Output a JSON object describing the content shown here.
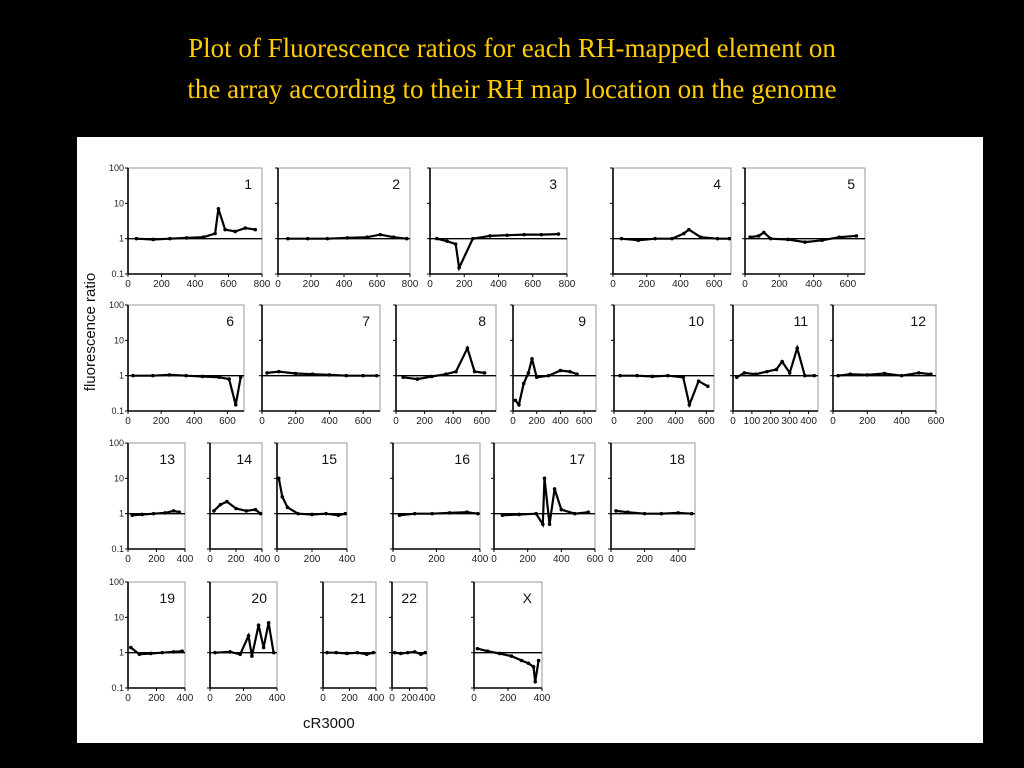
{
  "slide": {
    "title_line1": "Plot of Fluorescence ratios for each RH-mapped element on",
    "title_line2": "the array according to their RH map location on the genome"
  },
  "chart_data": {
    "type": "scatter",
    "y_scale": "log",
    "ylabel": "fluorescence ratio",
    "xlabel": "cR3000",
    "y_ticks": [
      "100",
      "10",
      "1",
      "0.1"
    ],
    "ylim": [
      0.1,
      100
    ],
    "baseline": 1,
    "panels": [
      {
        "label": "1",
        "x_ticks": [
          0,
          200,
          400,
          600,
          800
        ],
        "xlim": [
          0,
          800
        ],
        "points": [
          [
            50,
            1
          ],
          [
            150,
            0.95
          ],
          [
            250,
            1
          ],
          [
            350,
            1.05
          ],
          [
            450,
            1.1
          ],
          [
            520,
            1.4
          ],
          [
            540,
            7
          ],
          [
            580,
            1.8
          ],
          [
            640,
            1.6
          ],
          [
            700,
            2
          ],
          [
            760,
            1.8
          ]
        ]
      },
      {
        "label": "2",
        "x_ticks": [
          0,
          200,
          400,
          600,
          800
        ],
        "xlim": [
          0,
          800
        ],
        "points": [
          [
            60,
            1
          ],
          [
            180,
            1
          ],
          [
            300,
            1
          ],
          [
            420,
            1.05
          ],
          [
            540,
            1.1
          ],
          [
            620,
            1.3
          ],
          [
            700,
            1.1
          ],
          [
            780,
            1
          ]
        ]
      },
      {
        "label": "3",
        "x_ticks": [
          0,
          200,
          400,
          600,
          800
        ],
        "xlim": [
          0,
          800
        ],
        "points": [
          [
            40,
            1
          ],
          [
            100,
            0.85
          ],
          [
            150,
            0.7
          ],
          [
            170,
            0.15
          ],
          [
            250,
            1
          ],
          [
            350,
            1.2
          ],
          [
            450,
            1.25
          ],
          [
            550,
            1.3
          ],
          [
            650,
            1.3
          ],
          [
            750,
            1.35
          ]
        ]
      },
      {
        "label": "4",
        "x_ticks": [
          0,
          200,
          400,
          600
        ],
        "xlim": [
          0,
          700
        ],
        "points": [
          [
            50,
            1
          ],
          [
            150,
            0.9
          ],
          [
            250,
            1
          ],
          [
            350,
            1
          ],
          [
            420,
            1.4
          ],
          [
            450,
            1.8
          ],
          [
            520,
            1.1
          ],
          [
            620,
            1
          ],
          [
            690,
            1
          ]
        ]
      },
      {
        "label": "5",
        "x_ticks": [
          0,
          200,
          400,
          600
        ],
        "xlim": [
          0,
          700
        ],
        "points": [
          [
            30,
            1.1
          ],
          [
            80,
            1.2
          ],
          [
            110,
            1.5
          ],
          [
            150,
            1
          ],
          [
            250,
            0.95
          ],
          [
            350,
            0.8
          ],
          [
            450,
            0.9
          ],
          [
            550,
            1.1
          ],
          [
            650,
            1.2
          ]
        ]
      },
      {
        "label": "6",
        "x_ticks": [
          0,
          200,
          400,
          600
        ],
        "xlim": [
          0,
          700
        ],
        "points": [
          [
            30,
            1
          ],
          [
            150,
            1
          ],
          [
            250,
            1.05
          ],
          [
            350,
            1
          ],
          [
            450,
            0.95
          ],
          [
            550,
            0.9
          ],
          [
            610,
            0.8
          ],
          [
            650,
            0.15
          ],
          [
            680,
            0.9
          ]
        ]
      },
      {
        "label": "7",
        "x_ticks": [
          0,
          200,
          400,
          600
        ],
        "xlim": [
          0,
          700
        ],
        "points": [
          [
            30,
            1.2
          ],
          [
            100,
            1.3
          ],
          [
            200,
            1.15
          ],
          [
            300,
            1.1
          ],
          [
            400,
            1.05
          ],
          [
            500,
            1
          ],
          [
            600,
            1
          ],
          [
            680,
            1
          ]
        ]
      },
      {
        "label": "8",
        "x_ticks": [
          0,
          200,
          400,
          600
        ],
        "xlim": [
          0,
          700
        ],
        "points": [
          [
            50,
            0.9
          ],
          [
            150,
            0.8
          ],
          [
            250,
            0.95
          ],
          [
            350,
            1.1
          ],
          [
            420,
            1.3
          ],
          [
            500,
            6
          ],
          [
            550,
            1.3
          ],
          [
            620,
            1.2
          ]
        ]
      },
      {
        "label": "9",
        "x_ticks": [
          0,
          200,
          400,
          600
        ],
        "xlim": [
          0,
          700
        ],
        "points": [
          [
            20,
            0.2
          ],
          [
            50,
            0.15
          ],
          [
            90,
            0.6
          ],
          [
            130,
            1.2
          ],
          [
            160,
            3
          ],
          [
            200,
            0.9
          ],
          [
            300,
            1
          ],
          [
            400,
            1.4
          ],
          [
            480,
            1.3
          ],
          [
            540,
            1.1
          ]
        ]
      },
      {
        "label": "10",
        "x_ticks": [
          0,
          200,
          400,
          600
        ],
        "xlim": [
          0,
          650
        ],
        "points": [
          [
            40,
            1
          ],
          [
            150,
            1
          ],
          [
            250,
            0.95
          ],
          [
            350,
            1
          ],
          [
            450,
            0.9
          ],
          [
            490,
            0.15
          ],
          [
            550,
            0.7
          ],
          [
            610,
            0.5
          ]
        ]
      },
      {
        "label": "11",
        "x_ticks": [
          0,
          100,
          200,
          300,
          400
        ],
        "xlim": [
          0,
          450
        ],
        "points": [
          [
            20,
            0.9
          ],
          [
            60,
            1.2
          ],
          [
            120,
            1.1
          ],
          [
            180,
            1.3
          ],
          [
            230,
            1.5
          ],
          [
            260,
            2.5
          ],
          [
            300,
            1.2
          ],
          [
            340,
            6
          ],
          [
            380,
            1
          ],
          [
            430,
            1
          ]
        ]
      },
      {
        "label": "12",
        "x_ticks": [
          0,
          200,
          400,
          600
        ],
        "xlim": [
          0,
          600
        ],
        "points": [
          [
            30,
            1
          ],
          [
            100,
            1.1
          ],
          [
            200,
            1.05
          ],
          [
            300,
            1.15
          ],
          [
            400,
            1
          ],
          [
            500,
            1.2
          ],
          [
            570,
            1.1
          ]
        ]
      },
      {
        "label": "13",
        "x_ticks": [
          0,
          200,
          400
        ],
        "xlim": [
          0,
          400
        ],
        "points": [
          [
            30,
            0.9
          ],
          [
            100,
            0.95
          ],
          [
            180,
            1
          ],
          [
            260,
            1.05
          ],
          [
            320,
            1.2
          ],
          [
            360,
            1.1
          ]
        ]
      },
      {
        "label": "14",
        "x_ticks": [
          0,
          200,
          400
        ],
        "xlim": [
          0,
          400
        ],
        "points": [
          [
            30,
            1.2
          ],
          [
            80,
            1.8
          ],
          [
            130,
            2.2
          ],
          [
            200,
            1.4
          ],
          [
            280,
            1.2
          ],
          [
            350,
            1.3
          ],
          [
            390,
            1
          ]
        ]
      },
      {
        "label": "15",
        "x_ticks": [
          0,
          200,
          400
        ],
        "xlim": [
          0,
          400
        ],
        "points": [
          [
            10,
            10
          ],
          [
            30,
            3
          ],
          [
            60,
            1.5
          ],
          [
            120,
            1
          ],
          [
            200,
            0.95
          ],
          [
            280,
            1
          ],
          [
            350,
            0.9
          ],
          [
            390,
            1
          ]
        ]
      },
      {
        "label": "16",
        "x_ticks": [
          0,
          200,
          400
        ],
        "xlim": [
          0,
          400
        ],
        "points": [
          [
            30,
            0.9
          ],
          [
            100,
            1
          ],
          [
            180,
            1
          ],
          [
            260,
            1.05
          ],
          [
            340,
            1.1
          ],
          [
            390,
            1
          ]
        ]
      },
      {
        "label": "17",
        "x_ticks": [
          0,
          200,
          400,
          600
        ],
        "xlim": [
          0,
          600
        ],
        "points": [
          [
            50,
            0.9
          ],
          [
            150,
            0.95
          ],
          [
            250,
            1
          ],
          [
            290,
            0.5
          ],
          [
            300,
            10
          ],
          [
            330,
            0.5
          ],
          [
            360,
            5
          ],
          [
            400,
            1.3
          ],
          [
            480,
            1
          ],
          [
            560,
            1.1
          ]
        ]
      },
      {
        "label": "18",
        "x_ticks": [
          0,
          200,
          400
        ],
        "xlim": [
          0,
          500
        ],
        "points": [
          [
            30,
            1.2
          ],
          [
            100,
            1.1
          ],
          [
            200,
            1
          ],
          [
            300,
            1
          ],
          [
            400,
            1.05
          ],
          [
            480,
            1
          ]
        ]
      },
      {
        "label": "19",
        "x_ticks": [
          0,
          200,
          400
        ],
        "xlim": [
          0,
          400
        ],
        "points": [
          [
            20,
            1.4
          ],
          [
            80,
            0.9
          ],
          [
            160,
            0.95
          ],
          [
            240,
            1
          ],
          [
            320,
            1.05
          ],
          [
            380,
            1.1
          ]
        ]
      },
      {
        "label": "20",
        "x_ticks": [
          0,
          200,
          400
        ],
        "xlim": [
          0,
          400
        ],
        "points": [
          [
            30,
            1
          ],
          [
            120,
            1.05
          ],
          [
            180,
            0.9
          ],
          [
            230,
            3
          ],
          [
            250,
            0.8
          ],
          [
            290,
            6
          ],
          [
            320,
            1.4
          ],
          [
            350,
            7
          ],
          [
            380,
            1
          ]
        ]
      },
      {
        "label": "21",
        "x_ticks": [
          0,
          200,
          400
        ],
        "xlim": [
          0,
          400
        ],
        "points": [
          [
            30,
            1
          ],
          [
            100,
            1
          ],
          [
            180,
            0.95
          ],
          [
            260,
            1
          ],
          [
            330,
            0.9
          ],
          [
            380,
            1
          ]
        ]
      },
      {
        "label": "22",
        "x_ticks": [
          0,
          200,
          400
        ],
        "xlim": [
          0,
          400
        ],
        "points": [
          [
            30,
            1
          ],
          [
            100,
            0.95
          ],
          [
            180,
            1
          ],
          [
            260,
            1.05
          ],
          [
            330,
            0.9
          ],
          [
            380,
            1
          ]
        ]
      },
      {
        "label": "X",
        "x_ticks": [
          0,
          200,
          400
        ],
        "xlim": [
          0,
          400
        ],
        "points": [
          [
            20,
            1.3
          ],
          [
            80,
            1.1
          ],
          [
            150,
            0.95
          ],
          [
            220,
            0.8
          ],
          [
            280,
            0.6
          ],
          [
            320,
            0.5
          ],
          [
            350,
            0.4
          ],
          [
            360,
            0.15
          ],
          [
            380,
            0.6
          ]
        ]
      }
    ]
  }
}
